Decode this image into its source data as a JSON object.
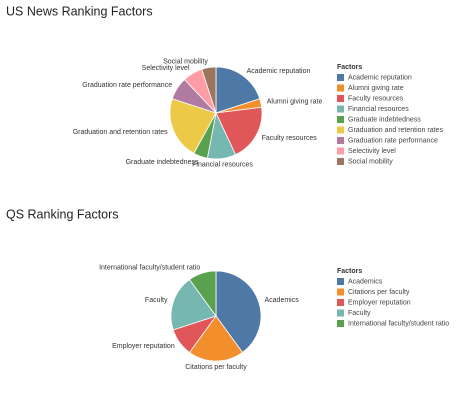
{
  "chart_data": [
    {
      "type": "pie",
      "title": "US News Ranking Factors",
      "legend_title": "Factors",
      "categories": [
        "Academic reputation",
        "Alumni giving rate",
        "Faculty resources",
        "Financial resources",
        "Graduate indebtedness",
        "Graduation and retention rates",
        "Graduation rate performance",
        "Selectivity level",
        "Social mobility"
      ],
      "values": [
        20,
        3,
        20,
        10,
        5,
        22,
        8,
        7,
        5
      ],
      "colors": [
        "#4e79a7",
        "#f28e2b",
        "#e15759",
        "#76b7b2",
        "#59a14f",
        "#edc948",
        "#b07aa1",
        "#ff9da7",
        "#9c755f"
      ]
    },
    {
      "type": "pie",
      "title": "QS Ranking Factors",
      "legend_title": "Factors",
      "categories": [
        "Academics",
        "Citations per faculty",
        "Employer reputation",
        "Faculty",
        "International faculty/student ratio"
      ],
      "values": [
        40,
        20,
        10,
        20,
        10
      ],
      "colors": [
        "#4e79a7",
        "#f28e2b",
        "#e15759",
        "#76b7b2",
        "#59a14f"
      ]
    }
  ]
}
